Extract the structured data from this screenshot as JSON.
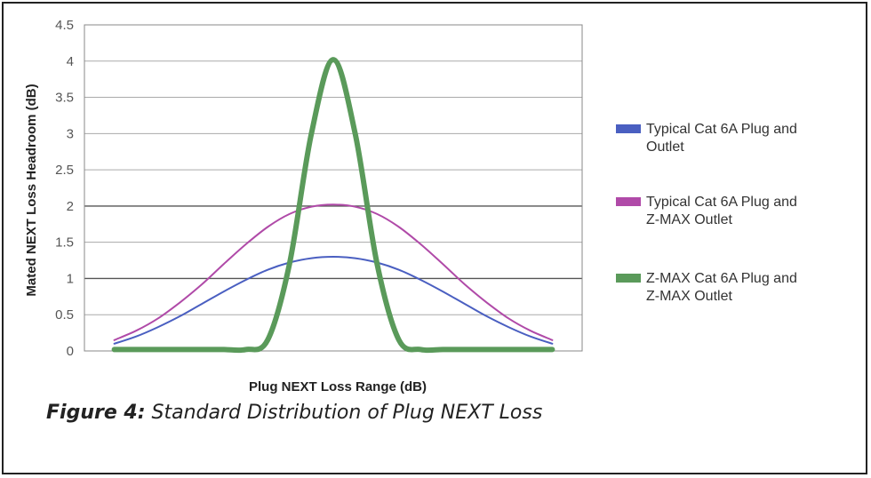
{
  "caption": {
    "label": "Figure 4:",
    "text": "Standard Distribution of Plug NEXT Loss"
  },
  "chart_data": {
    "type": "line",
    "title": "",
    "xlabel": "Plug NEXT Loss Range (dB)",
    "ylabel": "Mated NEXT Loss Headroom (dB)",
    "ylim": [
      0,
      4.5
    ],
    "yticks": [
      "0",
      "0.5",
      "1",
      "1.5",
      "2",
      "2.5",
      "3",
      "3.5",
      "4",
      "4.5"
    ],
    "grid": "horizontal",
    "legend_position": "right",
    "x": [
      -1,
      -0.9,
      -0.8,
      -0.7,
      -0.6,
      -0.5,
      -0.4,
      -0.3,
      -0.2,
      -0.1,
      0,
      0.1,
      0.2,
      0.3,
      0.4,
      0.5,
      0.6,
      0.7,
      0.8,
      0.9,
      1
    ],
    "series": [
      {
        "name": "Typical Cat 6A Plug and Outlet",
        "color": "#4a5fc1",
        "values": [
          0.1,
          0.2,
          0.33,
          0.48,
          0.65,
          0.82,
          0.98,
          1.12,
          1.22,
          1.28,
          1.3,
          1.28,
          1.22,
          1.12,
          0.98,
          0.82,
          0.65,
          0.48,
          0.33,
          0.2,
          0.1
        ]
      },
      {
        "name": "Typical Cat 6A Plug and Z-MAX Outlet",
        "color": "#b04aa8",
        "values": [
          0.15,
          0.28,
          0.45,
          0.67,
          0.92,
          1.2,
          1.47,
          1.71,
          1.89,
          1.99,
          2.02,
          1.99,
          1.89,
          1.71,
          1.47,
          1.2,
          0.92,
          0.67,
          0.45,
          0.28,
          0.15
        ]
      },
      {
        "name": "Z-MAX  Cat 6A Plug and Z-MAX Outlet",
        "color": "#5a9a5a",
        "values": [
          0.02,
          0.02,
          0.02,
          0.02,
          0.02,
          0.02,
          0.02,
          0.15,
          1.2,
          3.0,
          4.02,
          3.0,
          1.2,
          0.15,
          0.02,
          0.02,
          0.02,
          0.02,
          0.02,
          0.02,
          0.02
        ]
      }
    ]
  }
}
